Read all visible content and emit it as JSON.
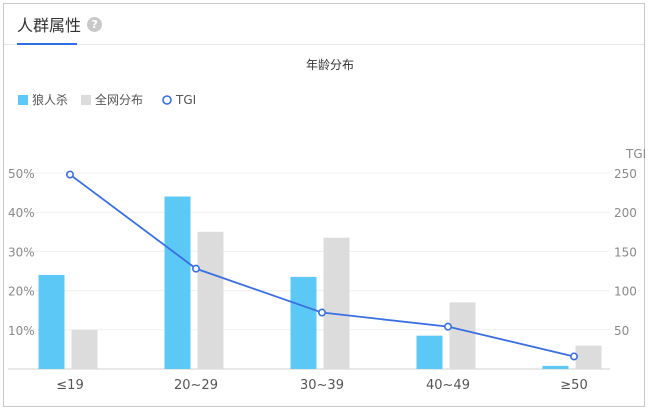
{
  "tab": {
    "label": "人群属性",
    "help_icon": "?"
  },
  "chart_data": {
    "type": "bar",
    "title": "年龄分布",
    "categories": [
      "≤19",
      "20~29",
      "30~39",
      "40~49",
      "≥50"
    ],
    "series": [
      {
        "name": "狼人杀",
        "values": [
          24,
          44,
          23.5,
          8.5,
          0.8
        ],
        "color": "#5bc8f5"
      },
      {
        "name": "全网分布",
        "values": [
          10,
          35,
          33.5,
          17,
          6
        ],
        "color": "#dcdcdc"
      }
    ],
    "line_series": {
      "name": "TGI",
      "values": [
        248,
        128,
        72,
        54,
        16
      ],
      "color": "#3a6fe0",
      "marker": "open-circle"
    },
    "ylim": [
      0,
      50
    ],
    "yticks": [
      "50%",
      "40%",
      "30%",
      "20%",
      "10%"
    ],
    "y2label": "TGI",
    "y2lim": [
      0,
      250
    ],
    "y2ticks": [
      "250",
      "200",
      "150",
      "100",
      "50"
    ],
    "legend_position": "top-left",
    "grid": true
  }
}
